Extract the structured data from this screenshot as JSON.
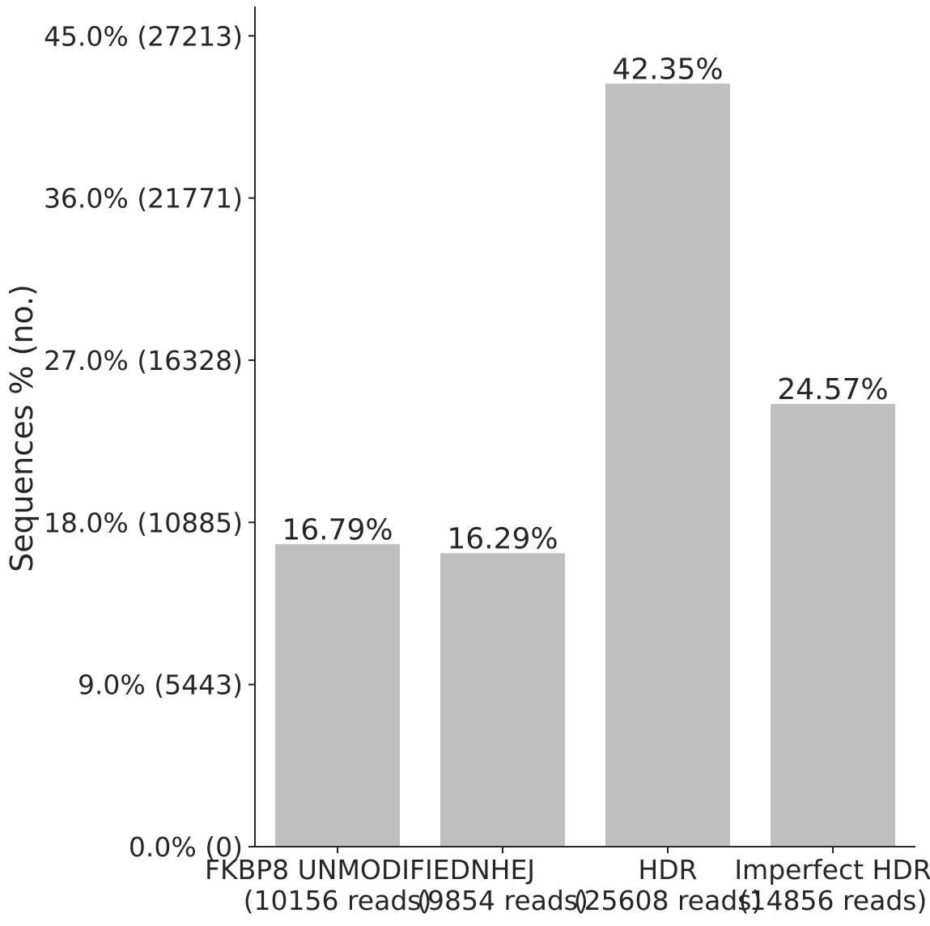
{
  "chart_data": {
    "type": "bar",
    "title": "",
    "xlabel": "",
    "ylabel": "Sequences % (no.)",
    "ylim": [
      0,
      46.7
    ],
    "grid": false,
    "legend": "none",
    "bar_color": "#bfbfbf",
    "axis_color": "#262626",
    "yticks": [
      {
        "value": 0,
        "label": "0.0% (0)"
      },
      {
        "value": 9,
        "label": "9.0% (5443)"
      },
      {
        "value": 18,
        "label": "18.0% (10885)"
      },
      {
        "value": 27,
        "label": "27.0% (16328)"
      },
      {
        "value": 36,
        "label": "36.0% (21771)"
      },
      {
        "value": 45,
        "label": "45.0% (27213)"
      }
    ],
    "categories": [
      [
        "FKBP8 UNMODIFIED",
        "(10156 reads)"
      ],
      [
        "NHEJ",
        "(9854 reads)"
      ],
      [
        "HDR",
        "(25608 reads)"
      ],
      [
        "Imperfect HDR",
        "(14856 reads)"
      ]
    ],
    "values": [
      16.79,
      16.29,
      42.35,
      24.57
    ],
    "data_labels": [
      "16.79%",
      "16.29%",
      "42.35%",
      "24.57%"
    ]
  }
}
